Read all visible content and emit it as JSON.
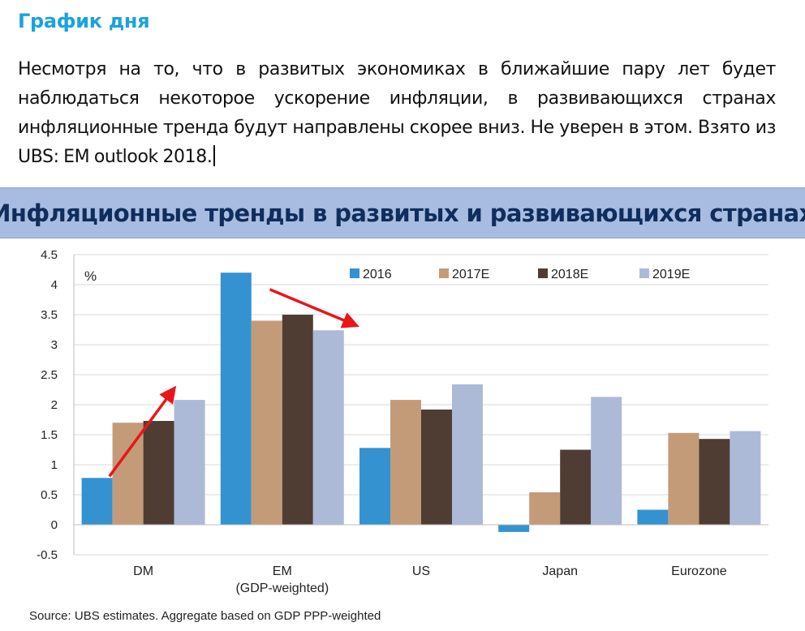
{
  "post": {
    "title": "График дня",
    "body": "Несмотря на то, что в развитых экономиках в ближайшие пару лет будет наблюдаться некоторое ускорение инфляции, в развивающихся странах инфляционные тренда будут направлены скорее вниз. Не уверен в этом. Взято из UBS: EM outlook 2018."
  },
  "chart_banner": "Инфляционные тренды в развитых и развивающихся странах",
  "chart_data": {
    "type": "bar",
    "unit_label": "%",
    "categories": [
      "DM",
      "EM",
      "US",
      "Japan",
      "Eurozone"
    ],
    "category_sublabels": [
      "",
      "(GDP-weighted)",
      "",
      "",
      ""
    ],
    "series": [
      {
        "name": "2016",
        "color": "#3592d0",
        "values": [
          0.78,
          4.2,
          1.28,
          -0.12,
          0.25
        ]
      },
      {
        "name": "2017E",
        "color": "#c49b79",
        "values": [
          1.7,
          3.4,
          2.08,
          0.54,
          1.53
        ]
      },
      {
        "name": "2018E",
        "color": "#4f3d34",
        "values": [
          1.73,
          3.5,
          1.92,
          1.25,
          1.43
        ]
      },
      {
        "name": "2019E",
        "color": "#adbad7",
        "values": [
          2.08,
          3.24,
          2.34,
          2.13,
          1.56
        ]
      }
    ],
    "ylim": [
      -0.5,
      4.5
    ],
    "yticks": [
      "4.5",
      "4",
      "3.5",
      "3",
      "2.5",
      "2",
      "1.5",
      "1",
      "0.5",
      "0",
      "-0.5"
    ],
    "grid": true,
    "legend_position": "top",
    "annotations": [
      {
        "type": "arrow",
        "color": "#e8161b",
        "direction": "up",
        "category": "DM"
      },
      {
        "type": "arrow",
        "color": "#e8161b",
        "direction": "down",
        "category": "EM"
      }
    ],
    "source": "Source:  UBS estimates. Aggregate based on GDP PPP-weighted"
  }
}
